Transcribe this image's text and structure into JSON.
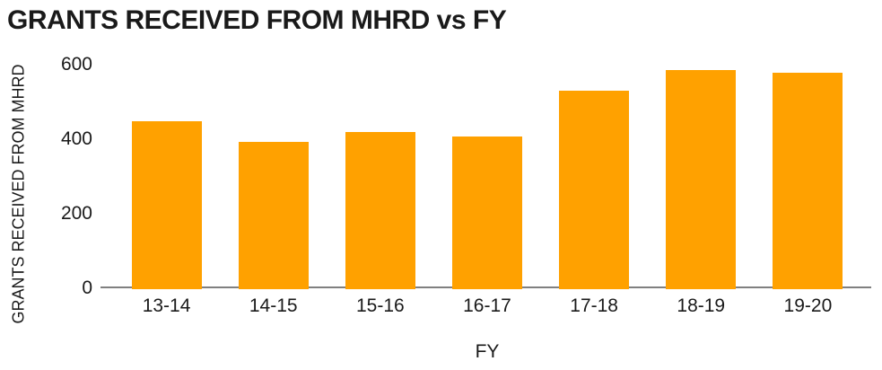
{
  "chart_data": {
    "type": "bar",
    "title": "GRANTS RECEIVED FROM MHRD vs FY",
    "xlabel": "FY",
    "ylabel": "GRANTS RECEIVED FROM MHRD",
    "categories": [
      "13-14",
      "14-15",
      "15-16",
      "16-17",
      "17-18",
      "18-19",
      "19-20"
    ],
    "values": [
      445,
      390,
      418,
      405,
      527,
      582,
      577
    ],
    "ylim": [
      0,
      600
    ],
    "yticks": [
      0,
      200,
      400,
      600
    ],
    "grid": false,
    "legend": false,
    "colors": {
      "bar": "#FFA100",
      "axis_line": "#808080",
      "text": "#1A1A1A",
      "background": "#FFFFFF"
    }
  }
}
